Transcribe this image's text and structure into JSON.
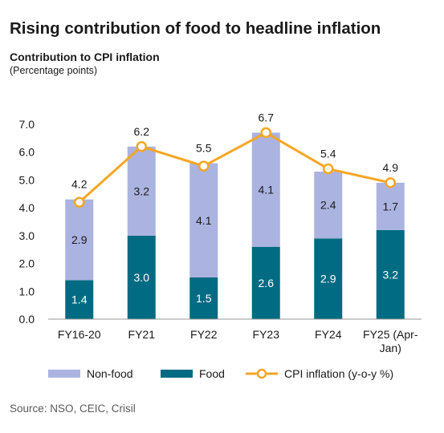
{
  "title": "Rising contribution of food to headline inflation",
  "subtitle": "Contribution to CPI inflation",
  "unit_label": "(Percentage points)",
  "source": "Source: NSO, CEIC, Crisil",
  "colors": {
    "non_food": "#abb3e0",
    "food": "#006b82",
    "cpi_line": "#f5a623",
    "cpi_marker_fill": "#ffffff"
  },
  "chart_data": {
    "type": "bar",
    "stacked": true,
    "categories": [
      "FY16-20",
      "FY21",
      "FY22",
      "FY23",
      "FY24",
      "FY25 (Apr-Jan)"
    ],
    "category_lines": [
      [
        "FY16-20"
      ],
      [
        "FY21"
      ],
      [
        "FY22"
      ],
      [
        "FY23"
      ],
      [
        "FY24"
      ],
      [
        "FY25 (Apr-",
        "Jan)"
      ]
    ],
    "series": [
      {
        "name": "Food",
        "type": "bar",
        "values": [
          1.4,
          3.0,
          1.5,
          2.6,
          2.9,
          3.2
        ]
      },
      {
        "name": "Non-food",
        "type": "bar",
        "values": [
          2.9,
          3.2,
          4.1,
          4.1,
          2.4,
          1.7
        ]
      },
      {
        "name": "CPI inflation (y-o-y %)",
        "type": "line",
        "values": [
          4.2,
          6.2,
          5.5,
          6.7,
          5.4,
          4.9
        ]
      }
    ],
    "legend": [
      "Non-food",
      "Food",
      "CPI inflation (y-o-y %)"
    ],
    "legend_position": "bottom",
    "ylim": [
      0,
      7.0
    ],
    "yticks": [
      "0.0",
      "1.0",
      "2.0",
      "3.0",
      "4.0",
      "5.0",
      "6.0",
      "7.0"
    ],
    "grid": false
  }
}
